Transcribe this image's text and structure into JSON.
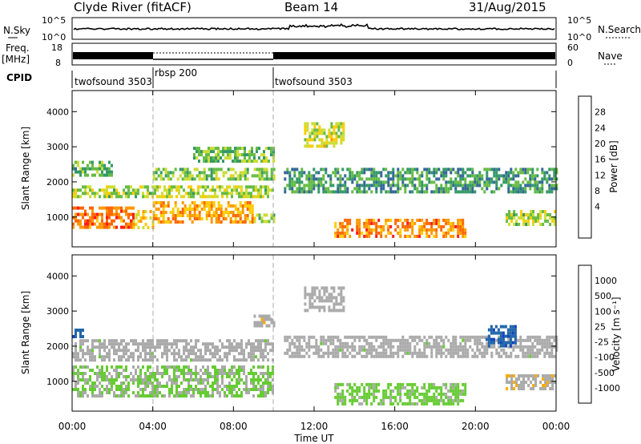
{
  "header": {
    "title": "Clyde River (fitACF)",
    "beam": "Beam 14",
    "date": "31/Aug/2015"
  },
  "left_labels": {
    "nsky": "N.Sky",
    "freq": "Freq.",
    "freq_unit": "[MHz]",
    "cpid": "CPID"
  },
  "right_labels": {
    "nsearch": "N.Search",
    "nave": "Nave"
  },
  "noise_panel": {
    "left_ticks": [
      "10^5",
      "10^0"
    ],
    "right_ticks": [
      "10^5",
      "10^0"
    ]
  },
  "freq_panel": {
    "left_ticks": [
      "18",
      "8"
    ],
    "right_ticks": [
      "60",
      "0"
    ]
  },
  "cpid_segments": [
    {
      "label": "twofsound 3503",
      "start_hour": 0
    },
    {
      "label": "rbsp 200",
      "start_hour": 4
    },
    {
      "label": "twofsound 3503",
      "start_hour": 10
    }
  ],
  "power_scale": {
    "title": "Power [dB]",
    "labels": [
      "28",
      "24",
      "20",
      "16",
      "12",
      "8",
      "4"
    ],
    "colors": [
      "#ff1a1a",
      "#ff6600",
      "#ff9900",
      "#ffcc00",
      "#ccdd33",
      "#66bb44",
      "#339966",
      "#336699",
      "#2233cc"
    ]
  },
  "velocity_scale": {
    "title": "Velocity [m s⁻¹]",
    "labels": [
      "1000",
      "500",
      "100",
      "25",
      "-25",
      "-100",
      "-500",
      "-1000"
    ],
    "colors": [
      "#1144bb",
      "#2266aa",
      "#339966",
      "#66cc33",
      "#aaaaaa",
      "#aaaaaa",
      "#ffaa00",
      "#ff7700",
      "#ee2200"
    ]
  },
  "xaxis": {
    "label": "Time UT",
    "ticks": [
      "00:00",
      "04:00",
      "08:00",
      "12:00",
      "16:00",
      "20:00",
      "00:00"
    ]
  },
  "chart_data": [
    {
      "type": "heatmap",
      "title": "Power [dB]",
      "xlabel": "Time UT",
      "ylabel": "Slant Range [km]",
      "xlim": [
        0,
        24
      ],
      "ylim": [
        150,
        4600
      ],
      "yticks": [
        1000,
        2000,
        3000,
        4000
      ],
      "zlim": [
        0,
        30
      ],
      "bands": [
        {
          "x": [
            0,
            3.0
          ],
          "y": [
            700,
            1300
          ],
          "value": 25
        },
        {
          "x": [
            3.0,
            4.0
          ],
          "y": [
            700,
            1200
          ],
          "value": 18
        },
        {
          "x": [
            4.0,
            9.0
          ],
          "y": [
            850,
            1450
          ],
          "value": 22
        },
        {
          "x": [
            9.0,
            10.0
          ],
          "y": [
            900,
            1100
          ],
          "value": 12
        },
        {
          "x": [
            13.0,
            19.5
          ],
          "y": [
            450,
            950
          ],
          "value": 24
        },
        {
          "x": [
            21.5,
            24
          ],
          "y": [
            800,
            1200
          ],
          "value": 14
        },
        {
          "x": [
            0,
            10.0
          ],
          "y": [
            1600,
            1900
          ],
          "value": 14
        },
        {
          "x": [
            4.0,
            10.0
          ],
          "y": [
            2100,
            2400
          ],
          "value": 12
        },
        {
          "x": [
            10.5,
            24
          ],
          "y": [
            1700,
            2400
          ],
          "value": 8
        },
        {
          "x": [
            0,
            2.0
          ],
          "y": [
            2200,
            2600
          ],
          "value": 10
        },
        {
          "x": [
            6.0,
            10.0
          ],
          "y": [
            2600,
            3000
          ],
          "value": 12
        },
        {
          "x": [
            11.5,
            13.5
          ],
          "y": [
            3000,
            3700
          ],
          "value": 16
        }
      ]
    },
    {
      "type": "heatmap",
      "title": "Velocity [m s⁻¹]",
      "xlabel": "Time UT",
      "ylabel": "Slant Range [km]",
      "xlim": [
        0,
        24
      ],
      "ylim": [
        150,
        4600
      ],
      "yticks": [
        1000,
        2000,
        3000,
        4000
      ],
      "zlim": [
        -1000,
        1000
      ],
      "bands": [
        {
          "x": [
            0,
            10.0
          ],
          "y": [
            600,
            1450
          ],
          "value": 150
        },
        {
          "x": [
            13.0,
            19.5
          ],
          "y": [
            400,
            950
          ],
          "value": 200
        },
        {
          "x": [
            0,
            10.0
          ],
          "y": [
            1600,
            2200
          ],
          "value": 0
        },
        {
          "x": [
            10.5,
            24
          ],
          "y": [
            1700,
            2300
          ],
          "value": 0
        },
        {
          "x": [
            0,
            0.5
          ],
          "y": [
            2300,
            2500
          ],
          "value": 800
        },
        {
          "x": [
            20.5,
            22.0
          ],
          "y": [
            2000,
            2600
          ],
          "value": 800
        },
        {
          "x": [
            9.0,
            10.0
          ],
          "y": [
            2600,
            2900
          ],
          "value": -300
        },
        {
          "x": [
            11.5,
            13.5
          ],
          "y": [
            3000,
            3700
          ],
          "value": -200
        },
        {
          "x": [
            21.5,
            24
          ],
          "y": [
            800,
            1200
          ],
          "value": -300
        }
      ]
    }
  ]
}
